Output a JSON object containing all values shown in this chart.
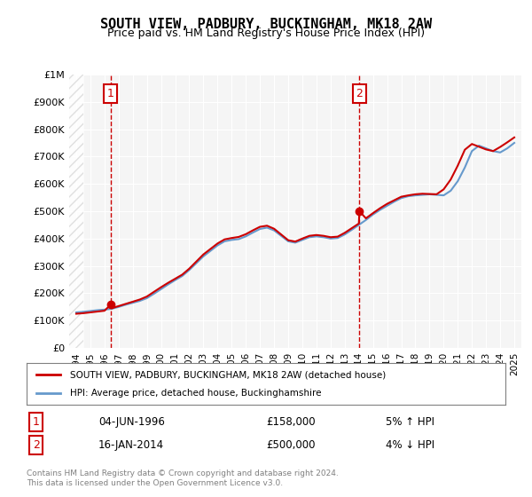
{
  "title": "SOUTH VIEW, PADBURY, BUCKINGHAM, MK18 2AW",
  "subtitle": "Price paid vs. HM Land Registry's House Price Index (HPI)",
  "ylim": [
    0,
    1000000
  ],
  "yticks": [
    0,
    100000,
    200000,
    300000,
    400000,
    500000,
    600000,
    700000,
    800000,
    900000,
    1000000
  ],
  "ytick_labels": [
    "£0",
    "£100K",
    "£200K",
    "£300K",
    "£400K",
    "£500K",
    "£600K",
    "£700K",
    "£800K",
    "£900K",
    "£1M"
  ],
  "xlim_start": 1993.5,
  "xlim_end": 2025.5,
  "sale1_x": 1996.43,
  "sale1_y": 158000,
  "sale1_label": "1",
  "sale1_date": "04-JUN-1996",
  "sale1_price": "£158,000",
  "sale1_hpi": "5% ↑ HPI",
  "sale2_x": 2014.04,
  "sale2_y": 500000,
  "sale2_label": "2",
  "sale2_date": "16-JAN-2014",
  "sale2_price": "£500,000",
  "sale2_hpi": "4% ↓ HPI",
  "property_color": "#cc0000",
  "hpi_color": "#6699cc",
  "vline_color": "#cc0000",
  "background_color": "#ffffff",
  "plot_bg_color": "#f5f5f5",
  "legend_label_property": "SOUTH VIEW, PADBURY, BUCKINGHAM, MK18 2AW (detached house)",
  "legend_label_hpi": "HPI: Average price, detached house, Buckinghamshire",
  "footer": "Contains HM Land Registry data © Crown copyright and database right 2024.\nThis data is licensed under the Open Government Licence v3.0.",
  "hpi_data_x": [
    1994,
    1994.5,
    1995,
    1995.5,
    1996,
    1996.5,
    1997,
    1997.5,
    1998,
    1998.5,
    1999,
    1999.5,
    2000,
    2000.5,
    2001,
    2001.5,
    2002,
    2002.5,
    2003,
    2003.5,
    2004,
    2004.5,
    2005,
    2005.5,
    2006,
    2006.5,
    2007,
    2007.5,
    2008,
    2008.5,
    2009,
    2009.5,
    2010,
    2010.5,
    2011,
    2011.5,
    2012,
    2012.5,
    2013,
    2013.5,
    2014,
    2014.5,
    2015,
    2015.5,
    2016,
    2016.5,
    2017,
    2017.5,
    2018,
    2018.5,
    2019,
    2019.5,
    2020,
    2020.5,
    2021,
    2021.5,
    2022,
    2022.5,
    2023,
    2023.5,
    2024,
    2024.5,
    2025
  ],
  "hpi_data_y": [
    130000,
    132000,
    135000,
    138000,
    140000,
    143000,
    150000,
    158000,
    165000,
    172000,
    182000,
    198000,
    215000,
    232000,
    248000,
    263000,
    285000,
    310000,
    335000,
    355000,
    375000,
    390000,
    395000,
    398000,
    408000,
    422000,
    435000,
    440000,
    430000,
    410000,
    390000,
    385000,
    395000,
    405000,
    408000,
    405000,
    400000,
    402000,
    415000,
    432000,
    450000,
    468000,
    488000,
    505000,
    520000,
    535000,
    548000,
    555000,
    558000,
    560000,
    562000,
    560000,
    558000,
    575000,
    610000,
    660000,
    720000,
    740000,
    730000,
    720000,
    715000,
    730000,
    750000
  ],
  "property_data_x": [
    1994,
    1994.5,
    1995,
    1995.5,
    1996,
    1996.43,
    1996.5,
    1997,
    1997.5,
    1998,
    1998.5,
    1999,
    1999.5,
    2000,
    2000.5,
    2001,
    2001.5,
    2002,
    2002.5,
    2003,
    2003.5,
    2004,
    2004.5,
    2005,
    2005.5,
    2006,
    2006.5,
    2007,
    2007.5,
    2008,
    2008.5,
    2009,
    2009.5,
    2010,
    2010.5,
    2011,
    2011.5,
    2012,
    2012.5,
    2013,
    2013.5,
    2014,
    2014.04,
    2014.5,
    2015,
    2015.5,
    2016,
    2016.5,
    2017,
    2017.5,
    2018,
    2018.5,
    2019,
    2019.5,
    2020,
    2020.5,
    2021,
    2021.5,
    2022,
    2022.5,
    2023,
    2023.5,
    2024,
    2024.5,
    2025
  ],
  "property_data_y": [
    125000,
    127000,
    130000,
    133000,
    136000,
    158000,
    145000,
    153000,
    161000,
    169000,
    177000,
    188000,
    205000,
    222000,
    238000,
    253000,
    268000,
    290000,
    316000,
    342000,
    362000,
    382000,
    397000,
    402000,
    406000,
    416000,
    430000,
    443000,
    447000,
    436000,
    415000,
    394000,
    389000,
    400000,
    410000,
    413000,
    410000,
    405000,
    407000,
    421000,
    438000,
    455000,
    500000,
    474000,
    493000,
    511000,
    527000,
    540000,
    553000,
    558000,
    562000,
    564000,
    563000,
    562000,
    580000,
    616000,
    667000,
    725000,
    746000,
    736000,
    726000,
    720000,
    735000,
    752000,
    770000
  ]
}
